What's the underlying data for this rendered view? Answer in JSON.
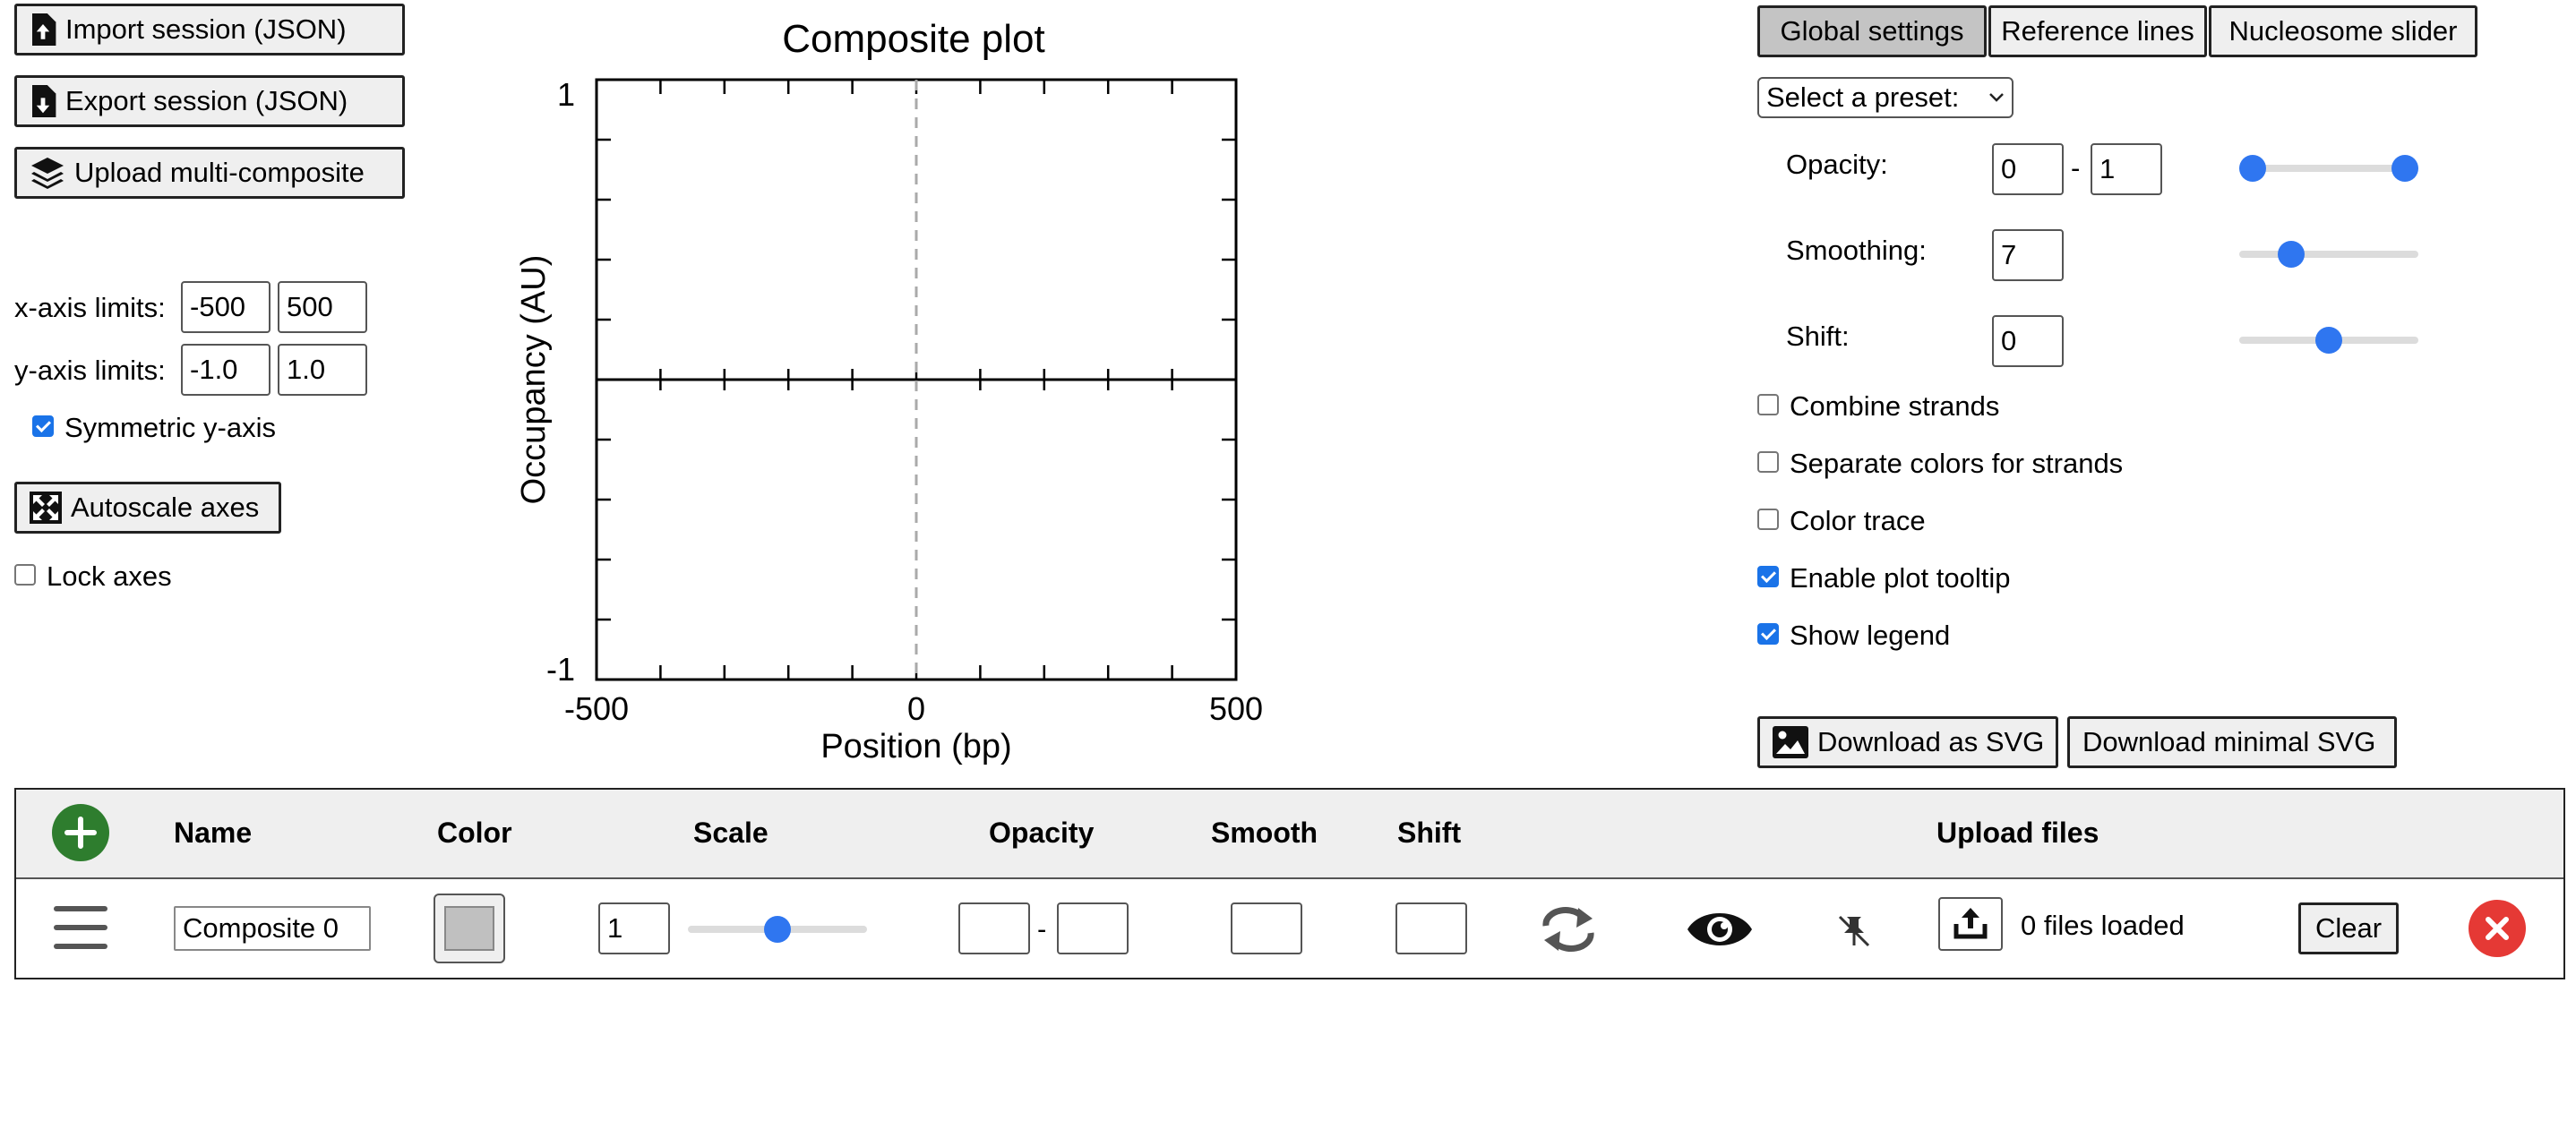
{
  "left": {
    "import_label": "Import session (JSON)",
    "export_label": "Export session (JSON)",
    "upload_label": "Upload multi-composite",
    "xaxis_label": "x-axis limits:",
    "xmin": "-500",
    "xmax": "500",
    "yaxis_label": "y-axis limits:",
    "ymin": "-1.0",
    "ymax": "1.0",
    "symmetric_label": "Symmetric y-axis",
    "symmetric_checked": true,
    "autoscale_label": "Autoscale axes",
    "lock_label": "Lock axes",
    "lock_checked": false
  },
  "plot": {
    "title": "Composite plot",
    "xlabel": "Position (bp)",
    "ylabel": "Occupancy (AU)",
    "x_ticks": [
      "-500",
      "0",
      "500"
    ],
    "y_ticks": [
      "1",
      "-1"
    ]
  },
  "chart_data": {
    "type": "line",
    "title": "Composite plot",
    "xlabel": "Position (bp)",
    "ylabel": "Occupancy (AU)",
    "xlim": [
      -500,
      500
    ],
    "ylim": [
      -1,
      1
    ],
    "x_tick_labels": [
      "-500",
      "0",
      "500"
    ],
    "y_tick_labels": [
      "1",
      "-1"
    ],
    "series": []
  },
  "right": {
    "tabs": [
      "Global settings",
      "Reference lines",
      "Nucleosome slider"
    ],
    "active_tab": 0,
    "preset_label": "Select a preset:",
    "opacity_label": "Opacity:",
    "opacity_min": "0",
    "opacity_dash": "-",
    "opacity_max": "1",
    "smoothing_label": "Smoothing:",
    "smoothing_value": "7",
    "shift_label": "Shift:",
    "shift_value": "0",
    "sliders": {
      "opacity_low": 0,
      "opacity_high": 1,
      "smoothing": 0.25,
      "shift": 0.5
    },
    "checkboxes": [
      {
        "label": "Combine strands",
        "checked": false
      },
      {
        "label": "Separate colors for strands",
        "checked": false
      },
      {
        "label": "Color trace",
        "checked": false
      },
      {
        "label": "Enable plot tooltip",
        "checked": true
      },
      {
        "label": "Show legend",
        "checked": true
      }
    ],
    "download_svg_label": "Download as SVG",
    "download_minimal_label": "Download minimal SVG"
  },
  "table": {
    "headers": {
      "name": "Name",
      "color": "Color",
      "scale": "Scale",
      "opacity": "Opacity",
      "smooth": "Smooth",
      "shift": "Shift",
      "upload": "Upload files"
    },
    "row": {
      "name": "Composite 0",
      "color": "#c0c0c0",
      "scale": "1",
      "scale_slider": 0.5,
      "opacity_dash": "-",
      "files_loaded": "0 files loaded",
      "clear_label": "Clear"
    }
  },
  "colors": {
    "accent": "#2f76f0",
    "add": "#2e7d2e",
    "remove": "#e53935"
  }
}
